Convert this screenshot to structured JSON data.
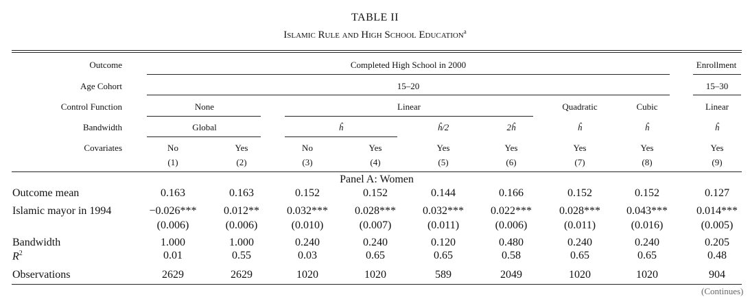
{
  "table_title": "TABLE II",
  "table_subtitle": "Islamic Rule and High School Education",
  "subtitle_note": "a",
  "header": {
    "outcome_label": "Outcome",
    "outcome_main": "Completed High School in 2000",
    "outcome_side": "Enrollment",
    "age_label": "Age Cohort",
    "age_main": "15–20",
    "age_side": "15–30",
    "control_label": "Control Function",
    "control_none": "None",
    "control_linear": "Linear",
    "control_quadratic": "Quadratic",
    "control_cubic": "Cubic",
    "control_linear2": "Linear",
    "bandwidth_label": "Bandwidth",
    "bw_global": "Global",
    "bw_cols": [
      "ĥ",
      "ĥ/2",
      "2ĥ",
      "ĥ",
      "ĥ",
      "ĥ"
    ],
    "covariates_label": "Covariates",
    "covariates": [
      "No",
      "Yes",
      "No",
      "Yes",
      "Yes",
      "Yes",
      "Yes",
      "Yes",
      "Yes"
    ],
    "col_numbers": [
      "(1)",
      "(2)",
      "(3)",
      "(4)",
      "(5)",
      "(6)",
      "(7)",
      "(8)",
      "(9)"
    ]
  },
  "panel_title": "Panel A: Women",
  "rows": {
    "outcome_mean": {
      "label": "Outcome mean",
      "values": [
        "0.163",
        "0.163",
        "0.152",
        "0.152",
        "0.144",
        "0.166",
        "0.152",
        "0.152",
        "0.127"
      ]
    },
    "islamic_mayor": {
      "label": "Islamic mayor in 1994",
      "values": [
        "−0.026***",
        "0.012**",
        "0.032***",
        "0.028***",
        "0.032***",
        "0.022***",
        "0.028***",
        "0.043***",
        "0.014***"
      ],
      "se": [
        "(0.006)",
        "(0.006)",
        "(0.010)",
        "(0.007)",
        "(0.011)",
        "(0.006)",
        "(0.011)",
        "(0.016)",
        "(0.005)"
      ]
    },
    "bandwidth": {
      "label": "Bandwidth",
      "values": [
        "1.000",
        "1.000",
        "0.240",
        "0.240",
        "0.120",
        "0.480",
        "0.240",
        "0.240",
        "0.205"
      ]
    },
    "r2": {
      "label": "R",
      "label_sup": "2",
      "values": [
        "0.01",
        "0.55",
        "0.03",
        "0.65",
        "0.65",
        "0.58",
        "0.65",
        "0.65",
        "0.48"
      ]
    },
    "observations": {
      "label": "Observations",
      "values": [
        "2629",
        "2629",
        "1020",
        "1020",
        "589",
        "2049",
        "1020",
        "1020",
        "904"
      ]
    }
  },
  "continued": "(Continues)"
}
